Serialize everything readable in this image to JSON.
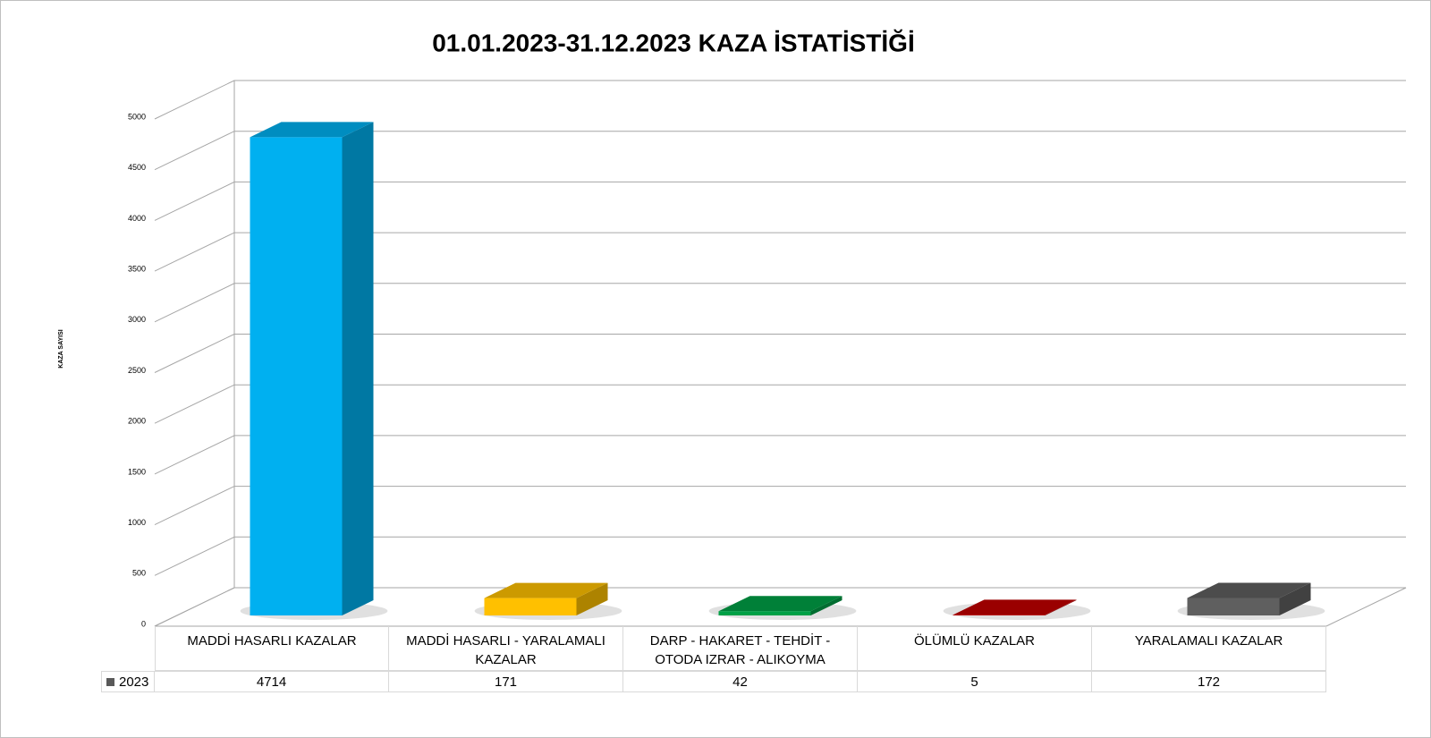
{
  "chart_data": {
    "type": "bar3d",
    "title": "01.01.2023-31.12.2023 KAZA İSTATİSTİĞİ",
    "y_label": "KAZA SAYISI",
    "categories": [
      "MADDİ HASARLI KAZALAR",
      "MADDİ HASARLI - YARALAMALI KAZALAR",
      "DARP - HAKARET - TEHDİT - OTODA IZRAR - ALIKOYMA",
      "ÖLÜMLÜ KAZALAR",
      "YARALAMALI KAZALAR"
    ],
    "series": [
      {
        "name": "2023",
        "color": "#595959",
        "values": [
          4714,
          171,
          42,
          5,
          172
        ],
        "colors": [
          "#00b0f0",
          "#ffc000",
          "#00a046",
          "#c00000",
          "#5f5f5f"
        ]
      }
    ],
    "ylim": [
      0,
      5000
    ],
    "yticks": [
      0,
      500,
      1000,
      1500,
      2000,
      2500,
      3000,
      3500,
      4000,
      4500,
      5000
    ],
    "grid": true
  }
}
